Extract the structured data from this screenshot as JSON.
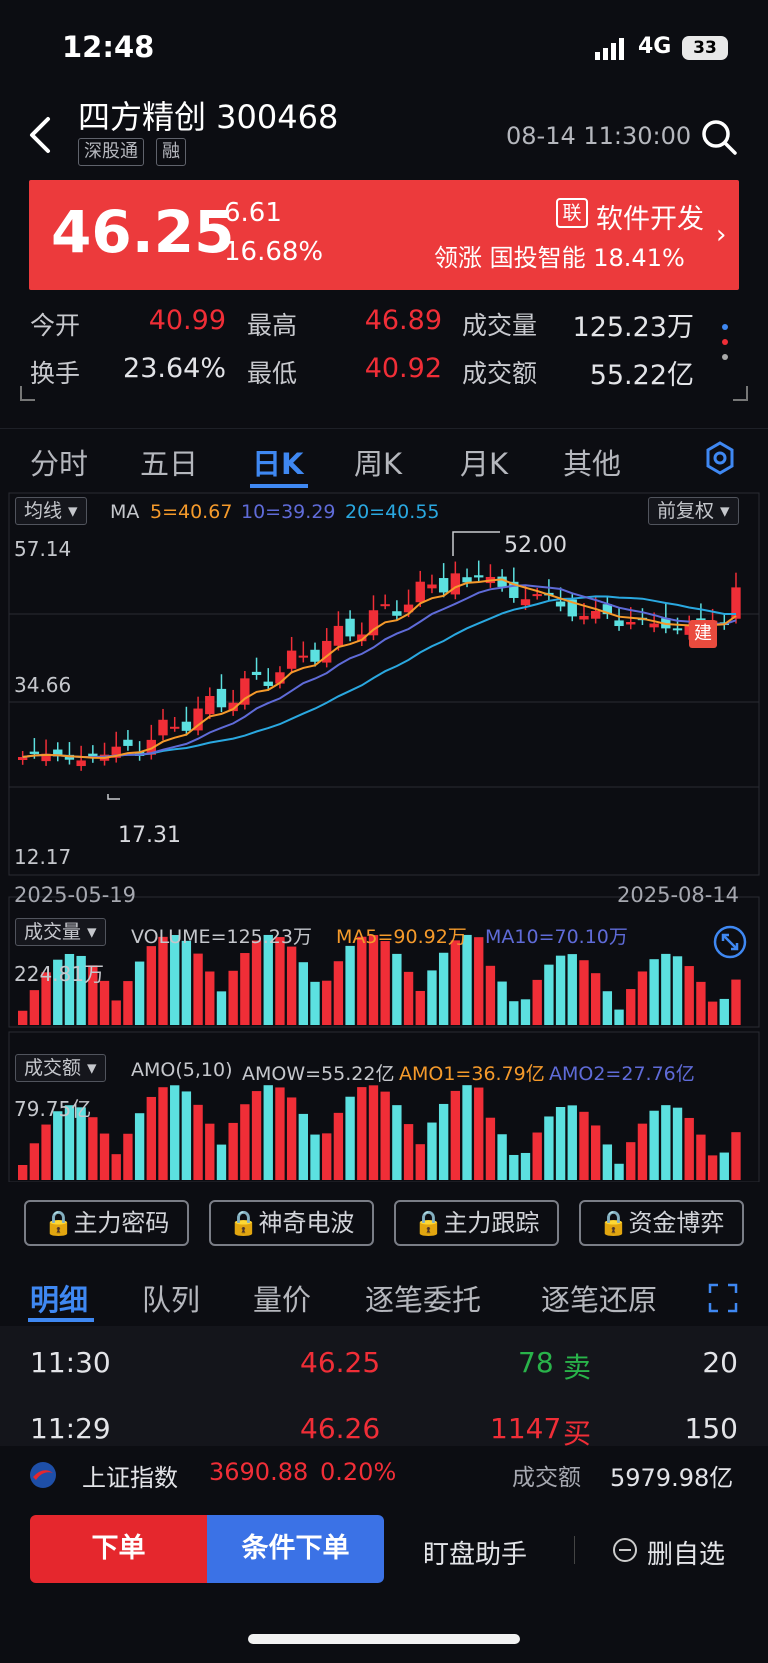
{
  "status_bar": {
    "time": "12:48",
    "network": "4G",
    "battery": "33"
  },
  "header": {
    "title": "四方精创 300468",
    "tags": [
      "深股通",
      "融"
    ],
    "datetime": "08-14 11:30:00"
  },
  "banner": {
    "price": "46.25",
    "change": "6.61",
    "change_pct": "16.68%",
    "industry_badge": "联",
    "industry_name": "软件开发",
    "leader": "领涨 国投智能 18.41%"
  },
  "stats": {
    "open_label": "今开",
    "open": "40.99",
    "high_label": "最高",
    "high": "46.89",
    "volume_label": "成交量",
    "volume": "125.23万",
    "turnover_label": "换手",
    "turnover": "23.64%",
    "low_label": "最低",
    "low": "40.92",
    "amount_label": "成交额",
    "amount": "55.22亿"
  },
  "kline_tabs": [
    "分时",
    "五日",
    "日K",
    "周K",
    "月K",
    "其他"
  ],
  "chart": {
    "ma_dropdown": "均线",
    "ma_label": "MA",
    "ma5": "5=40.67",
    "ma10": "10=39.29",
    "ma20": "20=40.55",
    "adjust": "前复权",
    "y_top": "57.14",
    "y_mid": "34.66",
    "y_bottom": "12.17",
    "peak_label": "52.00",
    "low_label": "17.31",
    "build_badge": "建",
    "date_start": "2025-05-19",
    "date_end": "2025-08-14",
    "colors": {
      "up": "#f02e37",
      "down": "#5ce0e0",
      "ma5": "#f59a2b",
      "ma10": "#5f6bd8",
      "ma20": "#2aa8e0"
    }
  },
  "volume_panel": {
    "dropdown": "成交量",
    "volume": "VOLUME=125.23万",
    "ma5": "MA5=90.92万",
    "ma10": "MA10=70.10万",
    "y_max": "224.81万"
  },
  "amount_panel": {
    "dropdown": "成交额",
    "amo": "AMO(5,10)",
    "amow": "AMOW=55.22亿",
    "amo1": "AMO1=36.79亿",
    "amo2": "AMO2=27.76亿",
    "y_max": "79.75亿"
  },
  "locked_tools": [
    "主力密码",
    "神奇电波",
    "主力跟踪",
    "资金博弈"
  ],
  "detail_tabs": [
    "明细",
    "队列",
    "量价",
    "逐笔委托",
    "逐笔还原"
  ],
  "ticks": [
    {
      "time": "11:30",
      "price": "46.25",
      "qty": "78",
      "side": "卖",
      "count": "20"
    },
    {
      "time": "11:29",
      "price": "46.26",
      "qty": "1147",
      "side": "买",
      "count": "150"
    }
  ],
  "index_ticker": {
    "name": "上证指数",
    "value": "3690.88",
    "pct": "0.20%",
    "amount_label": "成交额",
    "amount": "5979.98亿"
  },
  "bottom_bar": {
    "order": "下单",
    "conditional_order": "条件下单",
    "watch_assistant": "盯盘助手",
    "remove_watch": "删自选"
  }
}
